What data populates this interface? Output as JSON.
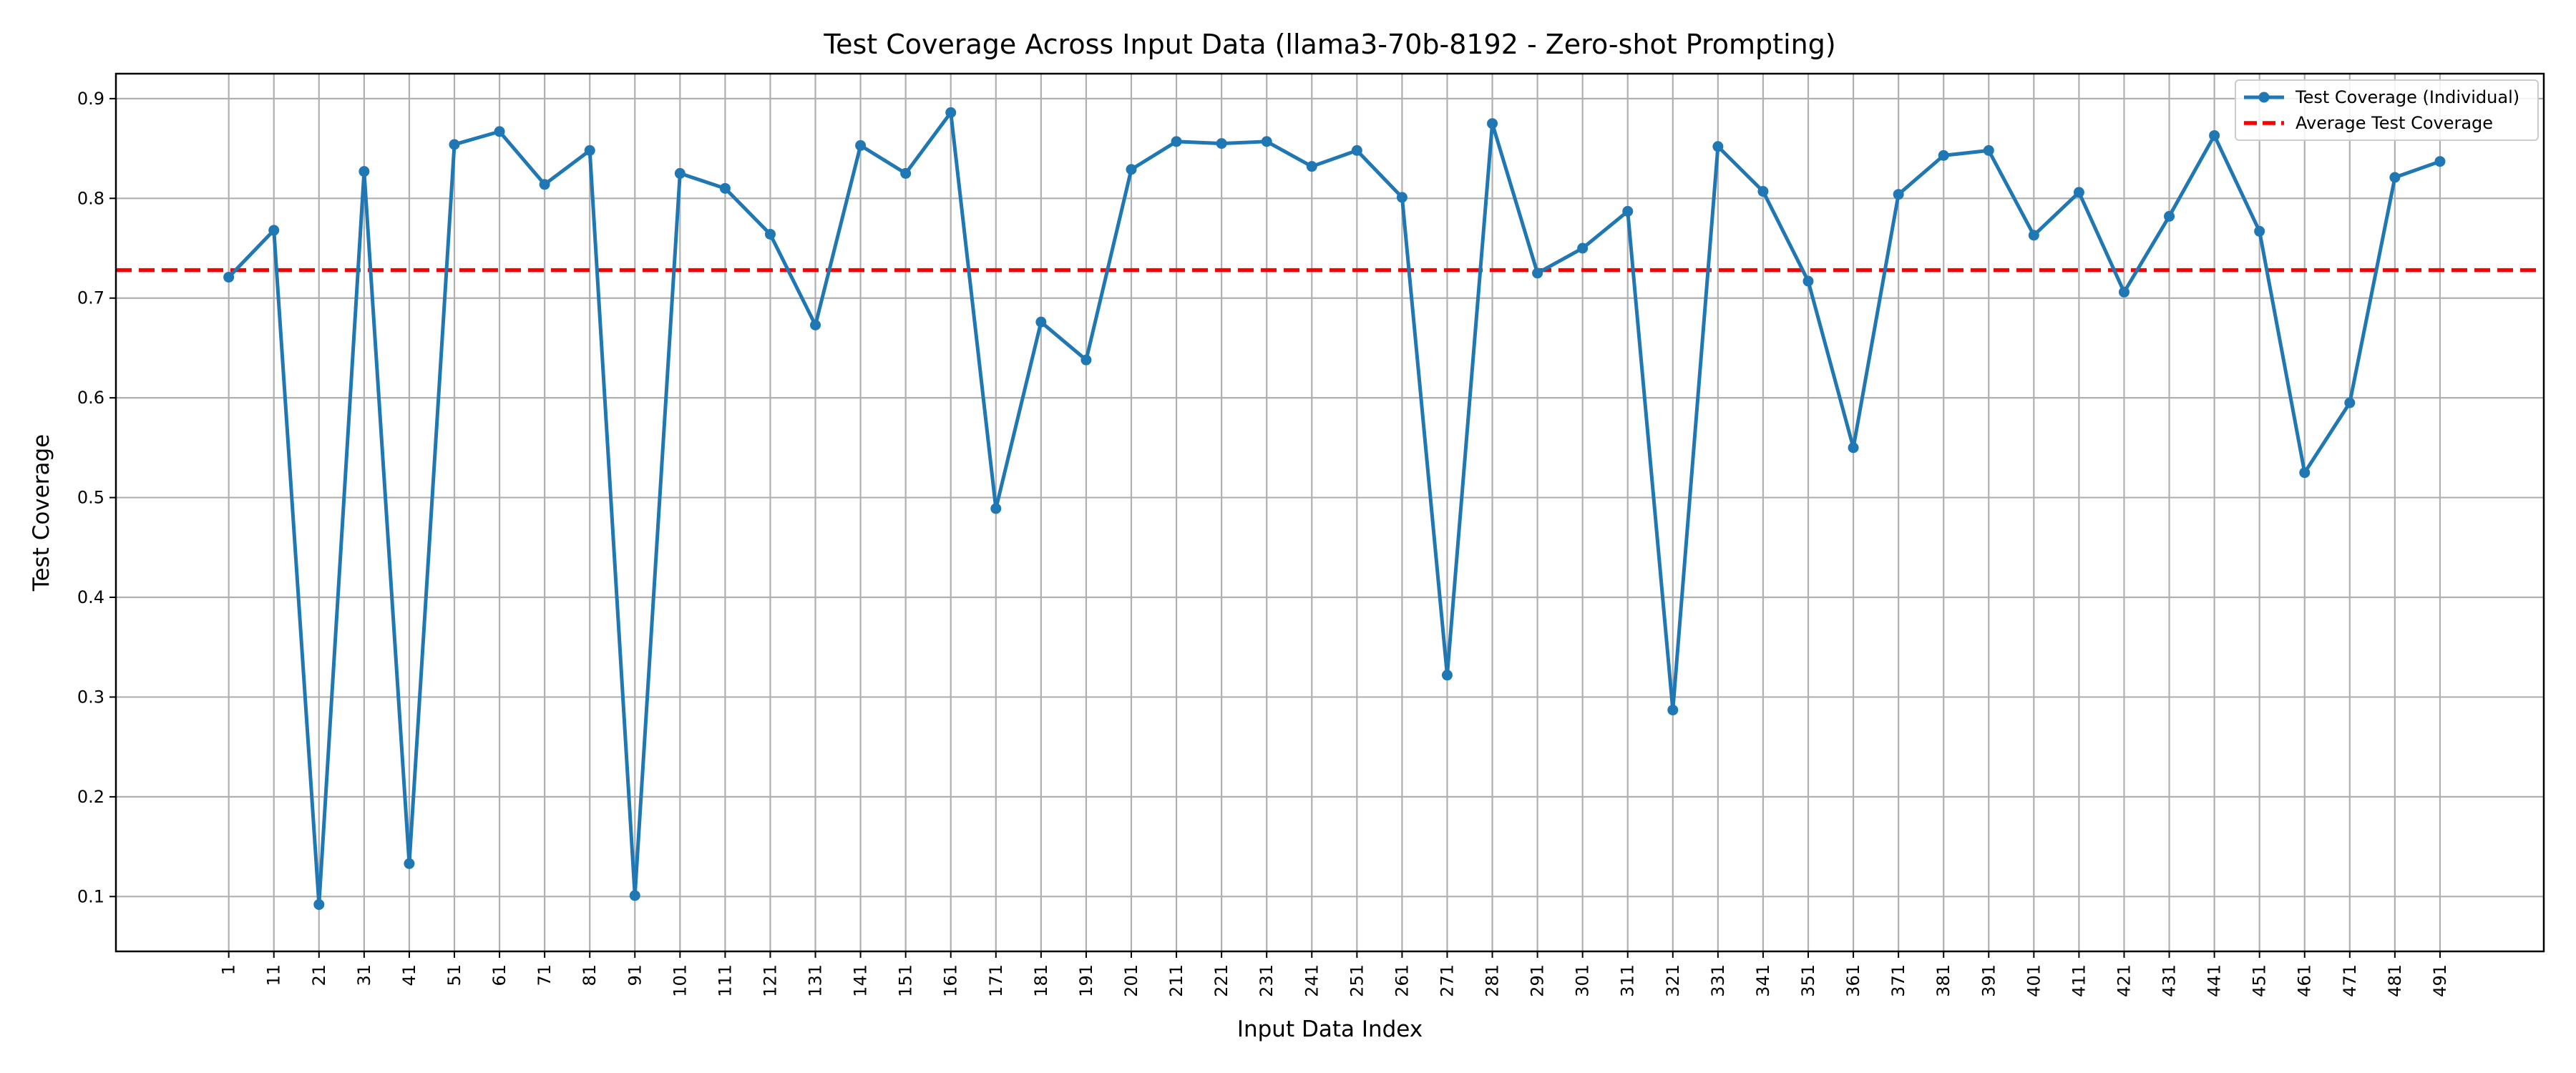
{
  "chart_data": {
    "type": "line",
    "title": "Test Coverage Across Input Data (llama3-70b-8192 - Zero-shot Prompting)",
    "xlabel": "Input Data Index",
    "ylabel": "Test Coverage",
    "x": [
      1,
      11,
      21,
      31,
      41,
      51,
      61,
      71,
      81,
      91,
      101,
      111,
      121,
      131,
      141,
      151,
      161,
      171,
      181,
      191,
      201,
      211,
      221,
      231,
      241,
      251,
      261,
      271,
      281,
      291,
      301,
      311,
      321,
      331,
      341,
      351,
      361,
      371,
      381,
      391,
      401,
      411,
      421,
      431,
      441,
      451,
      461,
      471,
      481,
      491
    ],
    "xticks": [
      "1",
      "11",
      "21",
      "31",
      "41",
      "51",
      "61",
      "71",
      "81",
      "91",
      "101",
      "111",
      "121",
      "131",
      "141",
      "151",
      "161",
      "171",
      "181",
      "191",
      "201",
      "211",
      "221",
      "231",
      "241",
      "251",
      "261",
      "271",
      "281",
      "291",
      "301",
      "311",
      "321",
      "331",
      "341",
      "351",
      "361",
      "371",
      "381",
      "391",
      "401",
      "411",
      "421",
      "431",
      "441",
      "451",
      "461",
      "471",
      "481",
      "491"
    ],
    "xlim": [
      -24,
      514
    ],
    "yticks": [
      "0.1",
      "0.2",
      "0.3",
      "0.4",
      "0.5",
      "0.6",
      "0.7",
      "0.8",
      "0.9"
    ],
    "ytick_values": [
      0.1,
      0.2,
      0.3,
      0.4,
      0.5,
      0.6,
      0.7,
      0.8,
      0.9
    ],
    "ylim": [
      0.045,
      0.925
    ],
    "grid": true,
    "legend_position": "top-right",
    "series": [
      {
        "name": "Test Coverage (Individual)",
        "color": "#1f77b4",
        "style": "solid-with-markers",
        "values": [
          0.721,
          0.768,
          0.092,
          0.827,
          0.133,
          0.854,
          0.867,
          0.814,
          0.848,
          0.101,
          0.825,
          0.81,
          0.764,
          0.673,
          0.853,
          0.825,
          0.886,
          0.489,
          0.676,
          0.638,
          0.829,
          0.857,
          0.855,
          0.857,
          0.832,
          0.848,
          0.801,
          0.322,
          0.875,
          0.725,
          0.75,
          0.787,
          0.287,
          0.852,
          0.807,
          0.717,
          0.55,
          0.804,
          0.843,
          0.848,
          0.763,
          0.806,
          0.706,
          0.782,
          0.863,
          0.767,
          0.525,
          0.595,
          0.821,
          0.837
        ]
      },
      {
        "name": "Average Test Coverage",
        "color": "#ff0000",
        "style": "dashed",
        "value": 0.728
      }
    ]
  }
}
